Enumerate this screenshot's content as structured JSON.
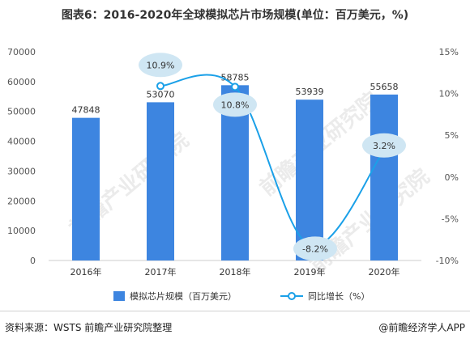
{
  "title": "图表6：2016-2020年全球模拟芯片市场规模(单位：百万美元，%)",
  "watermark": "前瞻产业研究院",
  "source": "资料来源：WSTS 前瞻产业研究院整理",
  "brand": "@前瞻经济学人APP",
  "colors": {
    "bar": "#3d85e0",
    "line": "#1aa0e8",
    "bubble": "#cfe6f3",
    "grid": "#e6e6e6"
  },
  "chart_data": {
    "type": "bar+line",
    "categories": [
      "2016年",
      "2017年",
      "2018年",
      "2019年",
      "2020年"
    ],
    "series": [
      {
        "name": "模拟芯片规模（百万美元）",
        "type": "bar",
        "axis": "left",
        "values": [
          47848,
          53070,
          58785,
          53939,
          55658
        ],
        "labels": [
          "47848",
          "53070",
          "58785",
          "53939",
          "55658"
        ]
      },
      {
        "name": "同比增长（%）",
        "type": "line",
        "axis": "right",
        "values": [
          null,
          10.9,
          10.8,
          -8.2,
          3.2
        ],
        "labels": [
          "",
          "10.9%",
          "10.8%",
          "-8.2%",
          "3.2%"
        ]
      }
    ],
    "y_left": {
      "min": 0,
      "max": 70000,
      "ticks": [
        "0",
        "10000",
        "20000",
        "30000",
        "40000",
        "50000",
        "60000",
        "70000"
      ]
    },
    "y_right": {
      "min": -10,
      "max": 15,
      "ticks": [
        "-10%",
        "-5%",
        "0%",
        "5%",
        "10%",
        "15%"
      ]
    },
    "grid": false,
    "legend_position": "bottom"
  }
}
